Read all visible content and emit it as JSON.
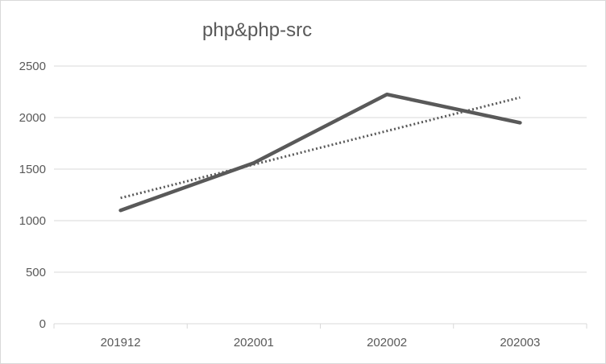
{
  "chart_data": {
    "type": "line",
    "title": "php&php-src",
    "categories": [
      "201912",
      "202001",
      "202002",
      "202003"
    ],
    "series": [
      {
        "values": [
          1100,
          1560,
          2225,
          1950
        ]
      }
    ],
    "trendline": {
      "kind": "linear",
      "style": "dotted",
      "values": [
        1220,
        1545,
        1870,
        2195
      ]
    },
    "yticks": [
      0,
      500,
      1000,
      1500,
      2000,
      2500
    ],
    "ylim": [
      0,
      2500
    ],
    "grid": true,
    "legend": "none",
    "colors": {
      "series": "#595959",
      "trendline": "#595959",
      "grid": "#d9d9d9",
      "axis": "#d9d9d9",
      "text": "#595959"
    }
  }
}
